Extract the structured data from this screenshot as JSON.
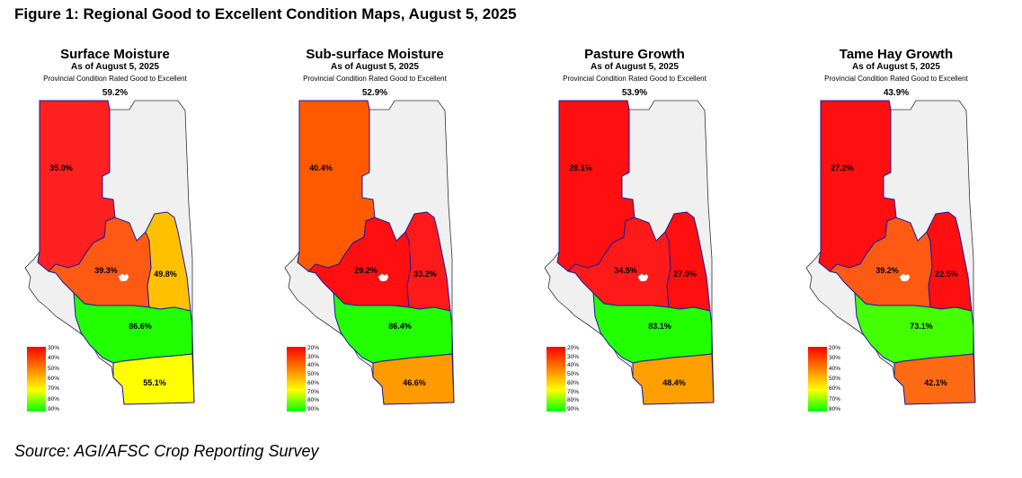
{
  "figure_title": "Figure 1: Regional Good to Excellent Condition Maps, August 5, 2025",
  "source": "Source: AGI/AFSC Crop Reporting Survey",
  "maps": [
    {
      "title": "Surface Moisture",
      "as_of": "As of August 5, 2025",
      "subtitle": "Provincial Condition Rated Good to Excellent",
      "provincial": "59.2%",
      "regions": {
        "northwest": {
          "value": "35.0%",
          "color": "#ff2020"
        },
        "central": {
          "value": "39.3%",
          "color": "#ff5a14"
        },
        "northeast": {
          "value": "49.8%",
          "color": "#ffc000"
        },
        "south_central": {
          "value": "86.6%",
          "color": "#22ff00"
        },
        "south": {
          "value": "55.1%",
          "color": "#ffff00"
        }
      },
      "legend": {
        "labels": [
          "30%",
          "40%",
          "50%",
          "60%",
          "70%",
          "80%",
          "90%"
        ],
        "colors": [
          "#ff0000",
          "#ff8000",
          "#ffff00",
          "#00ff00"
        ]
      }
    },
    {
      "title": "Sub-surface Moisture",
      "as_of": "As of August 5, 2025",
      "subtitle": "Provincial Condition Rated Good to Excellent",
      "provincial": "52.9%",
      "regions": {
        "northwest": {
          "value": "40.4%",
          "color": "#ff5a00"
        },
        "central": {
          "value": "29.2%",
          "color": "#ff0f0f"
        },
        "northeast": {
          "value": "33.2%",
          "color": "#ff1a1a"
        },
        "south_central": {
          "value": "86.4%",
          "color": "#22ff00"
        },
        "south": {
          "value": "46.6%",
          "color": "#ff9a00"
        }
      },
      "legend": {
        "labels": [
          "20%",
          "30%",
          "40%",
          "50%",
          "60%",
          "70%",
          "80%",
          "90%"
        ],
        "colors": [
          "#ff0000",
          "#ff8000",
          "#ffff00",
          "#00ff00"
        ]
      }
    },
    {
      "title": "Pasture Growth",
      "as_of": "As of August 5, 2025",
      "subtitle": "Provincial Condition Rated Good to Excellent",
      "provincial": "53.9%",
      "regions": {
        "northwest": {
          "value": "28.1%",
          "color": "#ff0f0f"
        },
        "central": {
          "value": "34.5%",
          "color": "#ff1a1a"
        },
        "northeast": {
          "value": "27.0%",
          "color": "#ff0f0f"
        },
        "south_central": {
          "value": "83.1%",
          "color": "#22ff00"
        },
        "south": {
          "value": "48.4%",
          "color": "#ffa000"
        }
      },
      "legend": {
        "labels": [
          "20%",
          "30%",
          "40%",
          "50%",
          "60%",
          "70%",
          "80%",
          "90%"
        ],
        "colors": [
          "#ff0000",
          "#ff8000",
          "#ffff00",
          "#00ff00"
        ]
      }
    },
    {
      "title": "Tame Hay Growth",
      "as_of": "As of August 5, 2025",
      "subtitle": "Provincial Condition Rated Good to Excellent",
      "provincial": "43.9%",
      "regions": {
        "northwest": {
          "value": "27.2%",
          "color": "#ff0f0f"
        },
        "central": {
          "value": "39.2%",
          "color": "#ff5a14"
        },
        "northeast": {
          "value": "22.5%",
          "color": "#ff0f0f"
        },
        "south_central": {
          "value": "73.1%",
          "color": "#44ff00"
        },
        "south": {
          "value": "42.1%",
          "color": "#ff6a14"
        }
      },
      "legend": {
        "labels": [
          "20%",
          "30%",
          "40%",
          "50%",
          "60%",
          "70%",
          "80%"
        ],
        "colors": [
          "#ff0000",
          "#ff8000",
          "#ffff00",
          "#00ff00"
        ]
      }
    }
  ]
}
